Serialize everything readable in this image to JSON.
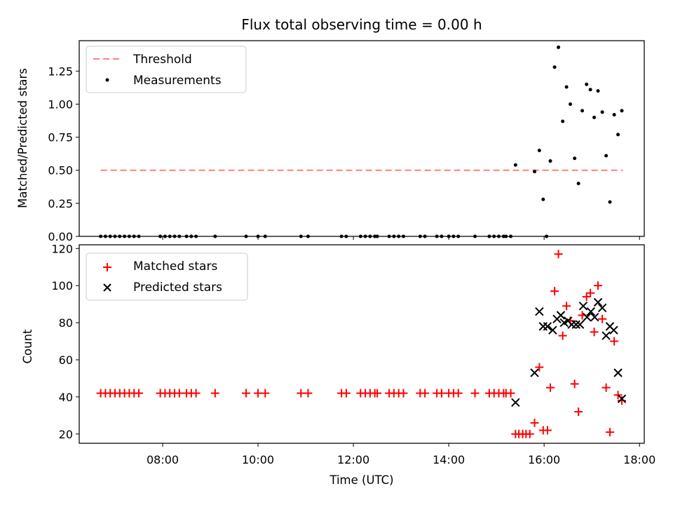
{
  "chart_data": {
    "title": "Flux total observing time = 0.00 h",
    "xlabel": "Time (UTC)",
    "x_units": "hours (UTC)",
    "xlim": [
      6.25,
      18.1
    ],
    "x_ticks": [
      {
        "v": 8,
        "label": "08:00"
      },
      {
        "v": 10,
        "label": "10:00"
      },
      {
        "v": 12,
        "label": "12:00"
      },
      {
        "v": 14,
        "label": "14:00"
      },
      {
        "v": 16,
        "label": "16:00"
      },
      {
        "v": 18,
        "label": "18:00"
      }
    ],
    "top": {
      "type": "scatter",
      "ylabel": "Matched/Predicted stars",
      "ylim": [
        0,
        1.48
      ],
      "y_ticks": [
        {
          "v": 0,
          "label": "0.00"
        },
        {
          "v": 0.25,
          "label": "0.25"
        },
        {
          "v": 0.5,
          "label": "0.50"
        },
        {
          "v": 0.75,
          "label": "0.75"
        },
        {
          "v": 1.0,
          "label": "1.00"
        },
        {
          "v": 1.25,
          "label": "1.25"
        }
      ],
      "legend_position": "top-left",
      "threshold": {
        "name": "Threshold",
        "value": 0.5,
        "x": [
          6.7,
          17.65
        ],
        "color": "#ff7f7f"
      },
      "measurements": {
        "name": "Measurements",
        "color": "#000000",
        "points": [
          [
            6.7,
            0
          ],
          [
            6.8,
            0
          ],
          [
            6.9,
            0
          ],
          [
            7.0,
            0
          ],
          [
            7.1,
            0
          ],
          [
            7.2,
            0
          ],
          [
            7.3,
            0
          ],
          [
            7.4,
            0
          ],
          [
            7.5,
            0
          ],
          [
            7.95,
            0
          ],
          [
            8.05,
            0
          ],
          [
            8.15,
            0
          ],
          [
            8.25,
            0
          ],
          [
            8.35,
            0
          ],
          [
            8.5,
            0
          ],
          [
            8.6,
            0
          ],
          [
            8.7,
            0
          ],
          [
            9.1,
            0
          ],
          [
            9.75,
            0
          ],
          [
            10.0,
            0
          ],
          [
            10.15,
            0
          ],
          [
            10.9,
            0
          ],
          [
            11.05,
            0
          ],
          [
            11.75,
            0
          ],
          [
            11.85,
            0
          ],
          [
            12.15,
            0
          ],
          [
            12.25,
            0
          ],
          [
            12.35,
            0
          ],
          [
            12.45,
            0
          ],
          [
            12.5,
            0
          ],
          [
            12.75,
            0
          ],
          [
            12.85,
            0
          ],
          [
            12.95,
            0
          ],
          [
            13.05,
            0
          ],
          [
            13.4,
            0
          ],
          [
            13.5,
            0
          ],
          [
            13.75,
            0
          ],
          [
            13.85,
            0
          ],
          [
            14.0,
            0
          ],
          [
            14.1,
            0
          ],
          [
            14.2,
            0
          ],
          [
            14.55,
            0
          ],
          [
            14.85,
            0
          ],
          [
            14.95,
            0
          ],
          [
            15.05,
            0
          ],
          [
            15.15,
            0
          ],
          [
            15.2,
            0
          ],
          [
            15.3,
            0
          ],
          [
            15.4,
            0.54
          ],
          [
            15.8,
            0.49
          ],
          [
            15.9,
            0.65
          ],
          [
            15.98,
            0.28
          ],
          [
            16.05,
            0.0
          ],
          [
            16.13,
            0.57
          ],
          [
            16.22,
            1.28
          ],
          [
            16.3,
            1.43
          ],
          [
            16.39,
            0.87
          ],
          [
            16.47,
            1.13
          ],
          [
            16.55,
            1.0
          ],
          [
            16.64,
            0.59
          ],
          [
            16.72,
            0.4
          ],
          [
            16.8,
            0.95
          ],
          [
            16.89,
            1.15
          ],
          [
            16.97,
            1.11
          ],
          [
            17.05,
            0.9
          ],
          [
            17.13,
            1.1
          ],
          [
            17.22,
            0.94
          ],
          [
            17.3,
            0.61
          ],
          [
            17.38,
            0.26
          ],
          [
            17.47,
            0.92
          ],
          [
            17.55,
            0.77
          ],
          [
            17.63,
            0.95
          ]
        ]
      }
    },
    "bottom": {
      "type": "scatter",
      "ylabel": "Count",
      "ylim": [
        15,
        122
      ],
      "y_ticks": [
        {
          "v": 20,
          "label": "20"
        },
        {
          "v": 40,
          "label": "40"
        },
        {
          "v": 60,
          "label": "60"
        },
        {
          "v": 80,
          "label": "80"
        },
        {
          "v": 100,
          "label": "100"
        },
        {
          "v": 120,
          "label": "120"
        }
      ],
      "legend_position": "top-left",
      "series": [
        {
          "name": "Matched stars",
          "marker": "+",
          "color": "#ff0000",
          "points": [
            [
              6.7,
              42
            ],
            [
              6.8,
              42
            ],
            [
              6.9,
              42
            ],
            [
              7.0,
              42
            ],
            [
              7.1,
              42
            ],
            [
              7.2,
              42
            ],
            [
              7.3,
              42
            ],
            [
              7.4,
              42
            ],
            [
              7.5,
              42
            ],
            [
              7.95,
              42
            ],
            [
              8.05,
              42
            ],
            [
              8.15,
              42
            ],
            [
              8.25,
              42
            ],
            [
              8.35,
              42
            ],
            [
              8.5,
              42
            ],
            [
              8.6,
              42
            ],
            [
              8.7,
              42
            ],
            [
              9.1,
              42
            ],
            [
              9.75,
              42
            ],
            [
              10.0,
              42
            ],
            [
              10.15,
              42
            ],
            [
              10.9,
              42
            ],
            [
              11.05,
              42
            ],
            [
              11.75,
              42
            ],
            [
              11.85,
              42
            ],
            [
              12.15,
              42
            ],
            [
              12.25,
              42
            ],
            [
              12.35,
              42
            ],
            [
              12.45,
              42
            ],
            [
              12.5,
              42
            ],
            [
              12.75,
              42
            ],
            [
              12.85,
              42
            ],
            [
              12.95,
              42
            ],
            [
              13.05,
              42
            ],
            [
              13.4,
              42
            ],
            [
              13.5,
              42
            ],
            [
              13.75,
              42
            ],
            [
              13.85,
              42
            ],
            [
              14.0,
              42
            ],
            [
              14.1,
              42
            ],
            [
              14.2,
              42
            ],
            [
              14.55,
              42
            ],
            [
              14.85,
              42
            ],
            [
              14.95,
              42
            ],
            [
              15.05,
              42
            ],
            [
              15.15,
              42
            ],
            [
              15.2,
              42
            ],
            [
              15.3,
              42
            ],
            [
              15.4,
              20
            ],
            [
              15.47,
              20
            ],
            [
              15.55,
              20
            ],
            [
              15.62,
              20
            ],
            [
              15.7,
              20
            ],
            [
              15.8,
              26
            ],
            [
              15.9,
              56
            ],
            [
              15.98,
              22
            ],
            [
              16.07,
              22
            ],
            [
              16.13,
              45
            ],
            [
              16.22,
              97
            ],
            [
              16.3,
              117
            ],
            [
              16.39,
              73
            ],
            [
              16.47,
              89
            ],
            [
              16.55,
              81
            ],
            [
              16.64,
              47
            ],
            [
              16.72,
              32
            ],
            [
              16.8,
              84
            ],
            [
              16.89,
              94
            ],
            [
              16.97,
              96
            ],
            [
              17.05,
              75
            ],
            [
              17.13,
              100
            ],
            [
              17.22,
              82
            ],
            [
              17.3,
              45
            ],
            [
              17.38,
              21
            ],
            [
              17.47,
              70
            ],
            [
              17.55,
              41
            ],
            [
              17.63,
              38
            ]
          ]
        },
        {
          "name": "Predicted stars",
          "marker": "x",
          "color": "#000000",
          "points": [
            [
              15.4,
              37
            ],
            [
              15.8,
              53
            ],
            [
              15.9,
              86
            ],
            [
              15.98,
              78
            ],
            [
              16.07,
              78
            ],
            [
              16.18,
              76
            ],
            [
              16.27,
              82
            ],
            [
              16.35,
              84
            ],
            [
              16.42,
              80
            ],
            [
              16.5,
              81
            ],
            [
              16.58,
              79
            ],
            [
              16.67,
              79
            ],
            [
              16.75,
              79
            ],
            [
              16.82,
              89
            ],
            [
              16.9,
              83
            ],
            [
              16.98,
              86
            ],
            [
              17.06,
              83
            ],
            [
              17.13,
              91
            ],
            [
              17.22,
              88
            ],
            [
              17.3,
              73
            ],
            [
              17.38,
              78
            ],
            [
              17.46,
              76
            ],
            [
              17.55,
              53
            ],
            [
              17.63,
              39
            ]
          ]
        }
      ]
    }
  }
}
